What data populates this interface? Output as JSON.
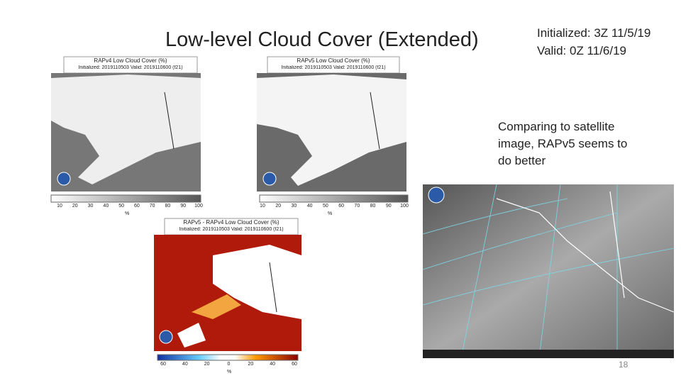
{
  "slide": {
    "title": "Low-level Cloud Cover (Extended)",
    "info": [
      "Initialized: 3Z 11/5/19",
      "Valid: 0Z 11/6/19"
    ],
    "note": "Comparing to satellite image, RAPv5 seems to do better",
    "page_number": "18"
  },
  "panels": [
    {
      "title": "RAPv4 Low Cloud Cover (%)",
      "subtitle": "Initialized: 2019110503 Valid: 2019110600 (f21)",
      "colorbar_ticks": [
        "10",
        "20",
        "30",
        "40",
        "50",
        "60",
        "70",
        "80",
        "90",
        "100"
      ],
      "unit": "%"
    },
    {
      "title": "RAPv5 Low Cloud Cover (%)",
      "subtitle": "Initialized: 2019110503 Valid: 2019110600 (f21)",
      "colorbar_ticks": [
        "10",
        "20",
        "30",
        "40",
        "50",
        "60",
        "70",
        "80",
        "90",
        "100"
      ],
      "unit": "%"
    },
    {
      "title": "RAPv5 - RAPv4 Low Cloud Cover (%)",
      "subtitle": "Initialized: 2019110503 Valid: 2019110600 (f21)",
      "colorbar_ticks": [
        "60",
        "40",
        "20",
        "0",
        "20",
        "40",
        "60"
      ],
      "unit": "%"
    }
  ]
}
